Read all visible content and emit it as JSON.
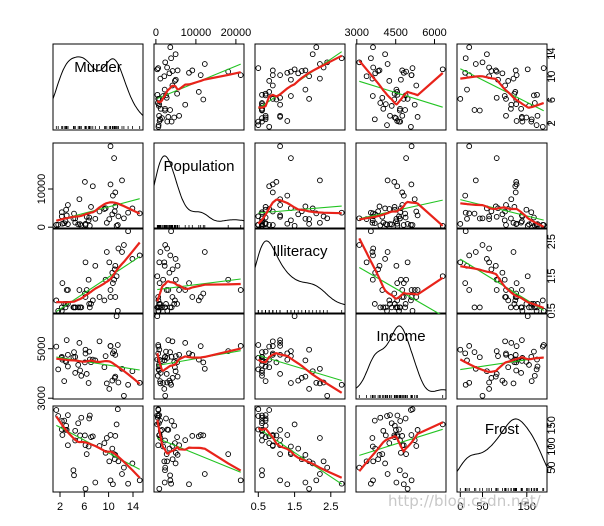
{
  "chart_data": {
    "type": "scatter",
    "variables": [
      "Murder",
      "Population",
      "Illiteracy",
      "Income",
      "Frost"
    ],
    "ranges": {
      "Murder": [
        1.4,
        15.1
      ],
      "Population": [
        365,
        21198
      ],
      "Illiteracy": [
        0.5,
        2.8
      ],
      "Income": [
        3098,
        6315
      ],
      "Frost": [
        0,
        188
      ]
    },
    "ticks": {
      "Murder": [
        2,
        6,
        10,
        14
      ],
      "Population": [
        0,
        10000,
        20000
      ],
      "Illiteracy": [
        0.5,
        1.5,
        2.5
      ],
      "Income": [
        3000,
        4500,
        6000
      ],
      "Frost": [
        0,
        50,
        100,
        150
      ]
    },
    "tick_labels": {
      "Murder": {
        "bottom": [
          "2",
          "6",
          "10",
          "14"
        ],
        "right": [
          "2",
          "6",
          "10",
          "14"
        ]
      },
      "Population": {
        "top": [
          "0",
          "10000",
          "20000"
        ],
        "left": [
          "0",
          "10000"
        ]
      },
      "Illiteracy": {
        "bottom": [
          "0.5",
          "1.5",
          "2.5"
        ],
        "right": [
          "0.5",
          "1.5",
          "2.5"
        ]
      },
      "Income": {
        "top": [
          "3000",
          "4500",
          "6000"
        ],
        "left": [
          "3000",
          "5000"
        ]
      },
      "Frost": {
        "bottom": [
          "0",
          "50",
          "150"
        ],
        "right": [
          "50",
          "100",
          "150"
        ]
      }
    },
    "points": {
      "Murder": [
        15.1,
        11.3,
        7.8,
        10.1,
        10.3,
        6.8,
        3.1,
        6.2,
        10.7,
        13.9,
        6.2,
        5.3,
        10.3,
        7.1,
        2.3,
        4.5,
        10.6,
        13.2,
        2.7,
        8.5,
        3.3,
        11.1,
        2.3,
        12.5,
        9.3,
        5.0,
        2.9,
        11.5,
        3.3,
        5.2,
        9.7,
        10.9,
        11.1,
        1.4,
        7.4,
        6.4,
        4.2,
        6.1,
        2.4,
        11.6,
        1.7,
        11.0,
        12.2,
        4.5,
        5.5,
        9.5,
        4.3,
        6.7,
        3.0,
        6.9
      ],
      "Population": [
        3615,
        365,
        2212,
        2110,
        21198,
        2541,
        3100,
        579,
        8277,
        4931,
        868,
        813,
        11197,
        5313,
        2861,
        2280,
        3387,
        3806,
        1058,
        4122,
        5814,
        9111,
        3921,
        2341,
        4767,
        746,
        1544,
        590,
        812,
        7333,
        1144,
        18076,
        5441,
        637,
        10735,
        2715,
        2284,
        11860,
        931,
        2816,
        681,
        4173,
        12237,
        1203,
        472,
        4981,
        3559,
        1799,
        4589,
        376
      ],
      "Illiteracy": [
        2.1,
        1.5,
        1.8,
        1.9,
        1.1,
        0.7,
        1.1,
        0.9,
        1.3,
        2.0,
        1.9,
        0.6,
        0.9,
        0.7,
        0.5,
        0.6,
        1.6,
        2.8,
        0.7,
        0.9,
        1.1,
        0.9,
        0.6,
        2.4,
        0.8,
        0.6,
        0.6,
        0.5,
        0.7,
        1.1,
        2.2,
        1.4,
        1.8,
        0.8,
        0.8,
        1.1,
        0.6,
        1.0,
        1.3,
        2.3,
        0.5,
        1.7,
        2.2,
        0.6,
        0.6,
        1.4,
        0.6,
        1.4,
        0.7,
        0.6
      ],
      "Income": [
        3624,
        6315,
        4530,
        3378,
        5114,
        4884,
        5348,
        4809,
        4815,
        4091,
        4963,
        4119,
        5107,
        4458,
        4628,
        4669,
        3712,
        3545,
        3694,
        5299,
        4755,
        4751,
        4675,
        3098,
        4254,
        4347,
        4508,
        5149,
        4281,
        5237,
        3601,
        4903,
        3875,
        5087,
        4561,
        3983,
        4660,
        4449,
        4558,
        3635,
        4167,
        3821,
        4188,
        4022,
        3907,
        4701,
        4864,
        3617,
        4468,
        4566
      ],
      "Frost": [
        20,
        152,
        15,
        65,
        20,
        166,
        139,
        103,
        11,
        60,
        0,
        126,
        127,
        122,
        140,
        114,
        95,
        12,
        161,
        101,
        103,
        125,
        160,
        50,
        108,
        155,
        139,
        188,
        174,
        115,
        120,
        82,
        80,
        186,
        124,
        82,
        44,
        126,
        127,
        65,
        172,
        70,
        35,
        137,
        168,
        85,
        32,
        100,
        149,
        173
      ]
    },
    "series": [
      {
        "name": "",
        "role": "points"
      },
      {
        "name": "",
        "role": "linear-fit"
      },
      {
        "name": "",
        "role": "loess-smoother"
      }
    ],
    "grid": false,
    "diagonal": "density"
  },
  "colors": {
    "points": "#000000",
    "linear_fit": "#22c422",
    "smoother": "#e8231a",
    "density": "#000000",
    "frame": "#000000",
    "watermark": "#c8c8c8"
  },
  "watermark": "http://blog.csdn.net/"
}
